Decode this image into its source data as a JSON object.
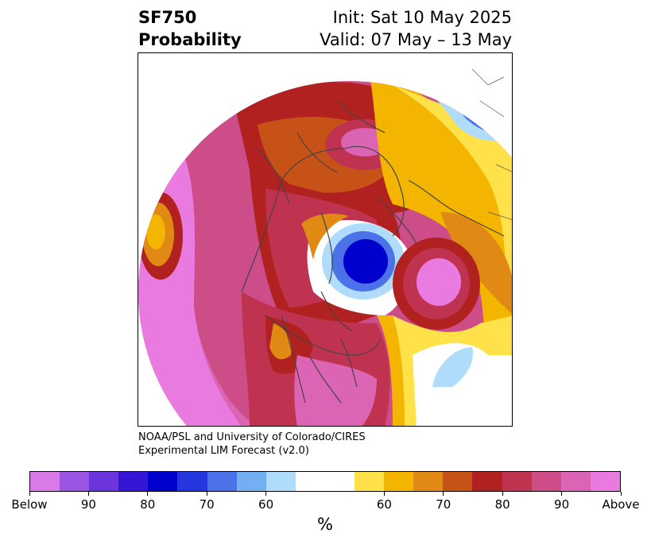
{
  "header": {
    "variable": "SF750",
    "product": "Probability",
    "init": "Init: Sat 10 May 2025",
    "valid": "Valid: 07 May – 13 May"
  },
  "credit": {
    "line1": "NOAA/PSL and University of Colorado/CIRES",
    "line2": "Experimental LIM Forecast (v2.0)"
  },
  "colorbar": {
    "colors": [
      "#d97ae8",
      "#9a55e3",
      "#6a35dc",
      "#3616d6",
      "#0000cd",
      "#2436df",
      "#4b72e8",
      "#73aff2",
      "#afdcfb",
      "#ffffff",
      "#ffe14a",
      "#f3b500",
      "#e08914",
      "#c75218",
      "#b0211f",
      "#c03350",
      "#cc4d87",
      "#db64b4",
      "#e87ae0"
    ],
    "tick_labels": [
      "Below",
      "90",
      "80",
      "70",
      "60",
      "60",
      "70",
      "80",
      "90",
      "Above"
    ],
    "unit": "%"
  },
  "map_colors": {
    "below_deep": "#0000cd",
    "below_mid": "#4b72e8",
    "below_light": "#afdcfb",
    "above_60": "#ffe14a",
    "above_65": "#f3b500",
    "above_70": "#e08914",
    "above_75": "#c75218",
    "above_80": "#b0211f",
    "above_85": "#c03350",
    "above_90": "#cc4d87",
    "above_max": "#e87ae0"
  }
}
